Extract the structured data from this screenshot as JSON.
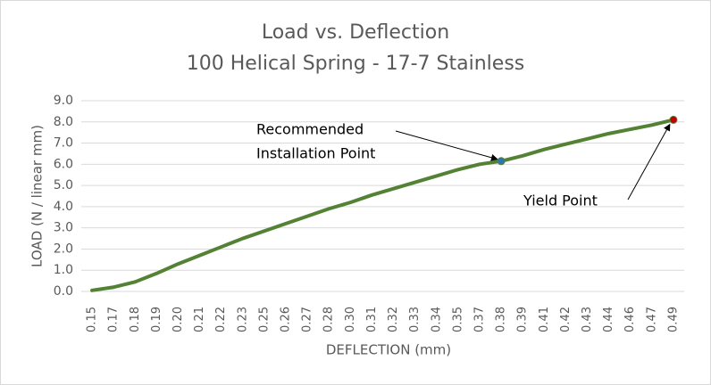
{
  "chart_data": {
    "type": "line",
    "title": [
      "Load vs. Deflection",
      "100 Helical Spring - 17-7 Stainless"
    ],
    "x_label": "DEFLECTION (mm)",
    "y_label": "LOAD (N / linear mm)",
    "categories": [
      "0.15",
      "0.17",
      "0.18",
      "0.19",
      "0.20",
      "0.21",
      "0.22",
      "0.23",
      "0.25",
      "0.26",
      "0.27",
      "0.28",
      "0.30",
      "0.31",
      "0.32",
      "0.33",
      "0.34",
      "0.35",
      "0.37",
      "0.38",
      "0.39",
      "0.41",
      "0.42",
      "0.43",
      "0.44",
      "0.46",
      "0.47",
      "0.49"
    ],
    "series": [
      {
        "color": "#548235",
        "values": [
          0.05,
          0.2,
          0.45,
          0.85,
          1.3,
          1.7,
          2.1,
          2.5,
          2.85,
          3.2,
          3.55,
          3.9,
          4.2,
          4.55,
          4.85,
          5.15,
          5.45,
          5.75,
          6.0,
          6.15,
          6.4,
          6.7,
          6.95,
          7.2,
          7.45,
          7.65,
          7.85,
          8.1
        ]
      }
    ],
    "ylim": [
      0,
      9
    ],
    "yticks": [
      {
        "value": 0,
        "label": "0.0"
      },
      {
        "value": 1,
        "label": "1.0"
      },
      {
        "value": 2,
        "label": "2.0"
      },
      {
        "value": 3,
        "label": "3.0"
      },
      {
        "value": 4,
        "label": "4.0"
      },
      {
        "value": 5,
        "label": "5.0"
      },
      {
        "value": 6,
        "label": "6.0"
      },
      {
        "value": 7,
        "label": "7.0"
      },
      {
        "value": 8,
        "label": "8.0"
      },
      {
        "value": 9,
        "label": "9.0"
      }
    ],
    "grid": true,
    "annotations": [
      {
        "text": [
          "Recommended",
          "Installation Point"
        ],
        "x": "0.38",
        "marker_color": "#2e75b6"
      },
      {
        "text": [
          "Yield Point"
        ],
        "x": "0.49",
        "marker_color": "#c00000"
      }
    ]
  }
}
